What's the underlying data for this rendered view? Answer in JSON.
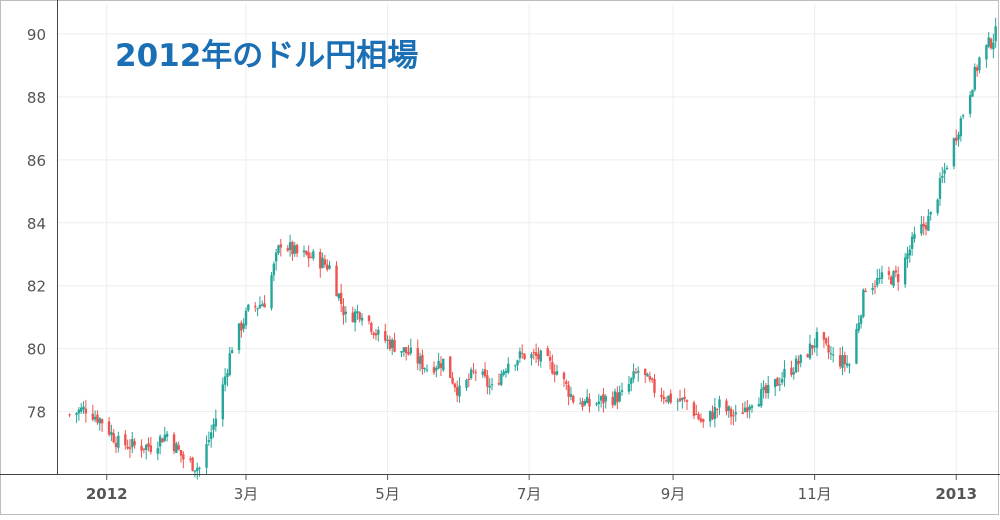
{
  "chart_data": {
    "type": "candlestick",
    "title": "2012年のドル円相場",
    "xlabel": "",
    "ylabel": "",
    "ylim": [
      76.0,
      90.8
    ],
    "y_ticks": [
      78,
      80,
      82,
      84,
      86,
      88,
      90
    ],
    "x_ticks": [
      "2012",
      "3月",
      "5月",
      "7月",
      "9月",
      "11月",
      "2013"
    ],
    "x_tick_dates": [
      "2012-01-01",
      "2012-03-01",
      "2012-05-01",
      "2012-07-01",
      "2012-09-01",
      "2012-11-01",
      "2013-01-01"
    ],
    "x_range": [
      "2011-12-11",
      "2013-01-19"
    ],
    "grid": true,
    "colors": {
      "up": "#26a69a",
      "down": "#ef5350",
      "title": "#1a6fb5",
      "grid": "#eeeeee",
      "axis": "#555555"
    },
    "series": [
      {
        "kind": "weekly_close",
        "dates": [
          "2011-12-16",
          "2011-12-23",
          "2011-12-30",
          "2012-01-06",
          "2012-01-13",
          "2012-01-20",
          "2012-01-27",
          "2012-02-03",
          "2012-02-10",
          "2012-02-17",
          "2012-02-24",
          "2012-03-02",
          "2012-03-09",
          "2012-03-16",
          "2012-03-23",
          "2012-03-30",
          "2012-04-06",
          "2012-04-13",
          "2012-04-20",
          "2012-04-27",
          "2012-05-04",
          "2012-05-11",
          "2012-05-18",
          "2012-05-25",
          "2012-06-01",
          "2012-06-08",
          "2012-06-15",
          "2012-06-22",
          "2012-06-29",
          "2012-07-06",
          "2012-07-13",
          "2012-07-20",
          "2012-07-27",
          "2012-08-03",
          "2012-08-10",
          "2012-08-17",
          "2012-08-24",
          "2012-08-31",
          "2012-09-07",
          "2012-09-14",
          "2012-09-21",
          "2012-09-28",
          "2012-10-05",
          "2012-10-12",
          "2012-10-19",
          "2012-10-26",
          "2012-11-02",
          "2012-11-09",
          "2012-11-16",
          "2012-11-23",
          "2012-11-30",
          "2012-12-07",
          "2012-12-14",
          "2012-12-21",
          "2012-12-28",
          "2013-01-04",
          "2013-01-11",
          "2013-01-18"
        ],
        "close": [
          77.9,
          78.1,
          77.7,
          77.0,
          76.9,
          76.9,
          77.3,
          76.5,
          76.2,
          77.8,
          80.1,
          81.2,
          81.5,
          83.4,
          83.0,
          82.9,
          82.6,
          81.0,
          81.2,
          80.4,
          80.1,
          79.8,
          79.4,
          79.6,
          78.6,
          79.3,
          78.7,
          79.6,
          79.8,
          79.7,
          79.3,
          78.4,
          78.2,
          78.4,
          78.5,
          79.3,
          78.7,
          78.4,
          78.3,
          77.6,
          78.2,
          77.8,
          78.4,
          78.6,
          79.2,
          79.6,
          80.3,
          79.7,
          79.5,
          82.0,
          82.2,
          82.3,
          83.5,
          84.2,
          85.9,
          87.5,
          89.2,
          90.0
        ]
      }
    ]
  }
}
